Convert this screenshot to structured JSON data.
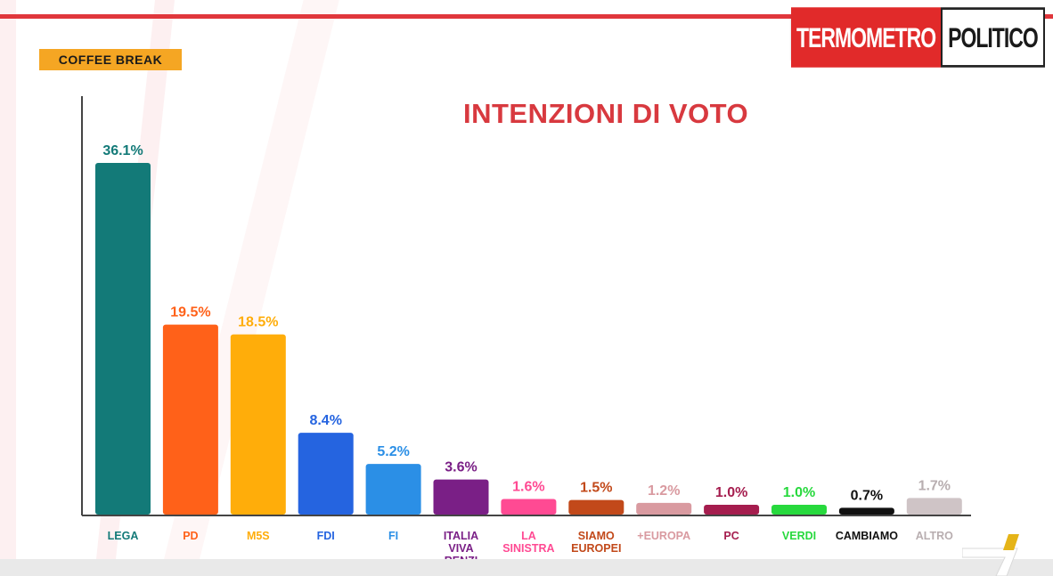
{
  "badge": "COFFEE BREAK",
  "logo": {
    "left": "TERMOMETRO",
    "right": "POLITICO"
  },
  "chart_data": {
    "type": "bar",
    "title": "INTENZIONI DI VOTO",
    "categories": [
      "LEGA",
      "PD",
      "M5S",
      "FDI",
      "FI",
      "ITALIA VIVA RENZI",
      "LA SINISTRA",
      "SIAMO EUROPEI",
      "+EUROPA",
      "PC",
      "VERDI",
      "CAMBIAMO",
      "ALTRO"
    ],
    "values": [
      36.1,
      19.5,
      18.5,
      8.4,
      5.2,
      3.6,
      1.6,
      1.5,
      1.2,
      1.0,
      1.0,
      0.7,
      1.7
    ],
    "labels": [
      "36.1%",
      "19.5%",
      "18.5%",
      "8.4%",
      "5.2%",
      "3.6%",
      "1.6%",
      "1.5%",
      "1.2%",
      "1.0%",
      "1.0%",
      "0.7%",
      "1.7%"
    ],
    "colors": [
      "#137a78",
      "#ff6119",
      "#ffad0a",
      "#2564e0",
      "#2b8fe6",
      "#7a1f86",
      "#ff4a93",
      "#c2491a",
      "#d99aa0",
      "#a51d4e",
      "#27d93d",
      "#111111",
      "#cfc4c6"
    ],
    "ylim": [
      0,
      40
    ],
    "grid": false,
    "legend": "none"
  }
}
